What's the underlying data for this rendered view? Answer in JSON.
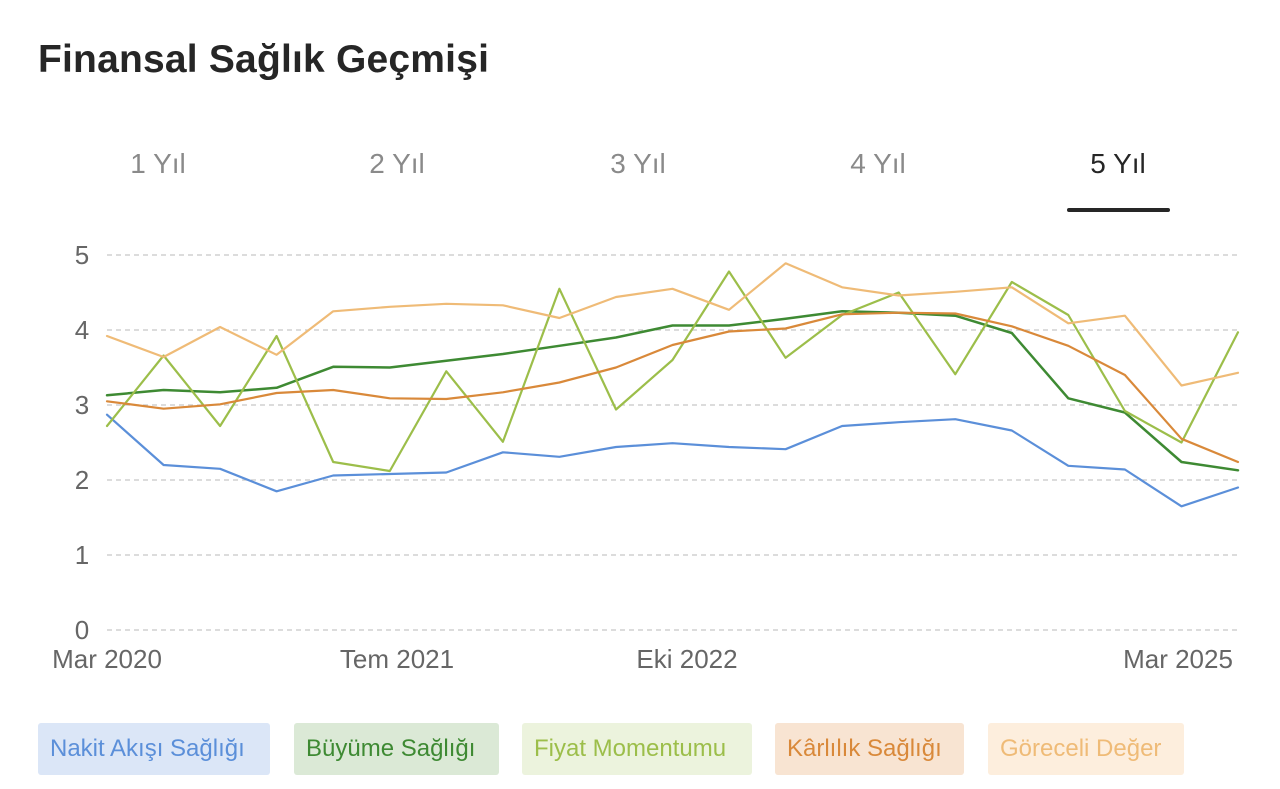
{
  "title": "Finansal Sağlık Geçmişi",
  "tabs": [
    {
      "label": "1 Yıl"
    },
    {
      "label": "2 Yıl"
    },
    {
      "label": "3 Yıl"
    },
    {
      "label": "4 Yıl"
    },
    {
      "label": "5 Yıl",
      "active": true
    }
  ],
  "chart_data": {
    "type": "line",
    "ylim": [
      0,
      5
    ],
    "yticks": [
      0,
      1,
      2,
      3,
      4,
      5
    ],
    "grid": true,
    "xlabels": [
      "Mar 2020",
      "Tem 2021",
      "Eki 2022",
      "Mar 2025"
    ],
    "series": [
      {
        "name": "Nakit Akışı Sağlığı",
        "color": "#5b8fd9",
        "legend_bg": "#dbe6f7",
        "values": [
          2.87,
          2.2,
          2.15,
          1.85,
          2.06,
          2.08,
          2.1,
          2.37,
          2.31,
          2.44,
          2.49,
          2.44,
          2.41,
          2.72,
          2.77,
          2.81,
          2.66,
          2.19,
          2.14,
          1.65,
          1.9
        ]
      },
      {
        "name": "Büyüme Sağlığı",
        "color": "#3e8a33",
        "legend_bg": "#dbe9d6",
        "values": [
          3.13,
          3.2,
          3.17,
          3.23,
          3.51,
          3.5,
          3.59,
          3.68,
          3.79,
          3.9,
          4.06,
          4.06,
          4.15,
          4.25,
          4.23,
          4.19,
          3.96,
          3.09,
          2.9,
          2.24,
          2.13
        ]
      },
      {
        "name": "Fiyat Momentumu",
        "color": "#9cbe4a",
        "legend_bg": "#ecf3dd",
        "values": [
          2.72,
          3.66,
          2.72,
          3.92,
          2.24,
          2.12,
          3.45,
          2.51,
          4.55,
          2.94,
          3.6,
          4.78,
          3.63,
          4.2,
          4.5,
          3.41,
          4.64,
          4.2,
          2.92,
          2.5,
          3.97
        ]
      },
      {
        "name": "Kârlılık Sağlığı",
        "color": "#d9893a",
        "legend_bg": "#f8e4d2",
        "values": [
          3.05,
          2.95,
          3.01,
          3.16,
          3.2,
          3.09,
          3.08,
          3.17,
          3.3,
          3.5,
          3.8,
          3.98,
          4.02,
          4.21,
          4.23,
          4.22,
          4.05,
          3.79,
          3.4,
          2.55,
          2.24
        ]
      },
      {
        "name": "Göreceli Değer",
        "color": "#efbb77",
        "legend_bg": "#fdeedd",
        "values": [
          3.92,
          3.64,
          4.04,
          3.67,
          4.25,
          4.31,
          4.35,
          4.33,
          4.16,
          4.44,
          4.55,
          4.27,
          4.89,
          4.57,
          4.46,
          4.51,
          4.57,
          4.09,
          4.19,
          3.26,
          3.43
        ]
      }
    ]
  }
}
